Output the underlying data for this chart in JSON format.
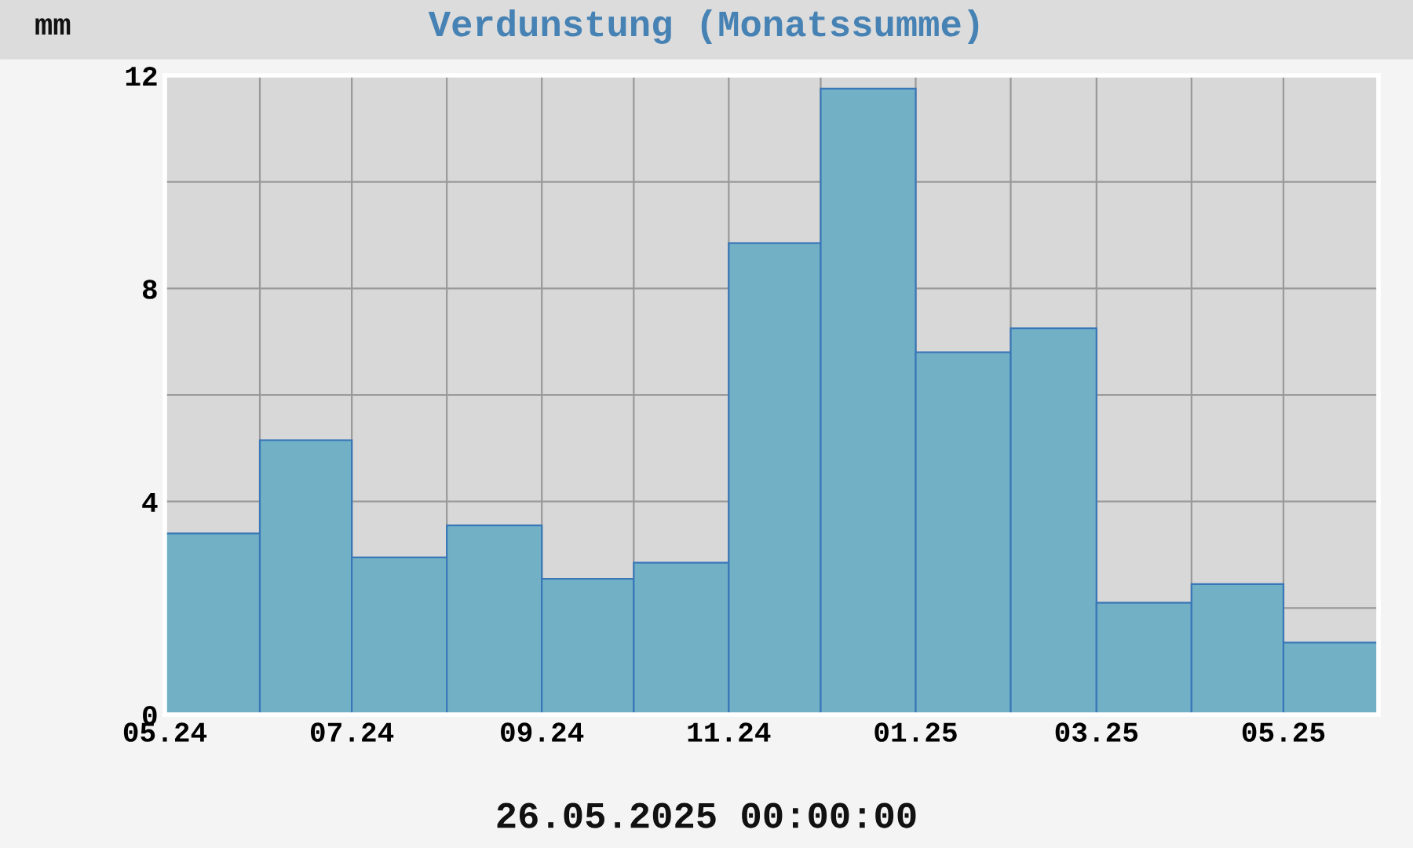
{
  "chart_data": {
    "type": "histogram",
    "title": "Verdunstung (Monatssumme)",
    "ylabel": "mm",
    "annotations": [
      "26.05.2025 00:00:00"
    ],
    "bins": [
      "2024-05-01",
      "2024-06-01",
      "2024-07-01",
      "2024-08-01",
      "2024-09-01",
      "2024-10-01",
      "2024-11-01",
      "2024-12-01",
      "2025-01-01",
      "2025-02-01",
      "2025-03-01",
      "2025-04-01",
      "2025-05-01",
      "2025-06-01"
    ],
    "values": [
      3.4,
      5.15,
      2.95,
      3.55,
      2.55,
      2.85,
      8.85,
      11.75,
      6.8,
      7.25,
      2.1,
      2.45,
      1.35
    ],
    "color": "#72b1c5",
    "xlim": [
      "2024-05-01",
      "2025-06-01"
    ],
    "xticks": [
      {
        "value": "2024-05-01",
        "label": "05.24"
      },
      {
        "value": "2024-06-01",
        "label": null
      },
      {
        "value": "2024-07-01",
        "label": "07.24"
      },
      {
        "value": "2024-08-01",
        "label": null
      },
      {
        "value": "2024-09-01",
        "label": "09.24"
      },
      {
        "value": "2024-10-01",
        "label": null
      },
      {
        "value": "2024-11-01",
        "label": "11.24"
      },
      {
        "value": "2024-12-01",
        "label": null
      },
      {
        "value": "2025-01-01",
        "label": "01.25"
      },
      {
        "value": "2025-02-01",
        "label": null
      },
      {
        "value": "2025-03-01",
        "label": "03.25"
      },
      {
        "value": "2025-04-01",
        "label": null
      },
      {
        "value": "2025-05-01",
        "label": "05.25"
      }
    ],
    "ylim": [
      0,
      12
    ],
    "yticks": [
      0,
      {
        "value": 2,
        "label": null
      },
      4,
      {
        "value": 6,
        "label": null
      },
      8,
      {
        "value": 10,
        "label": null
      },
      12
    ],
    "grid": true
  }
}
